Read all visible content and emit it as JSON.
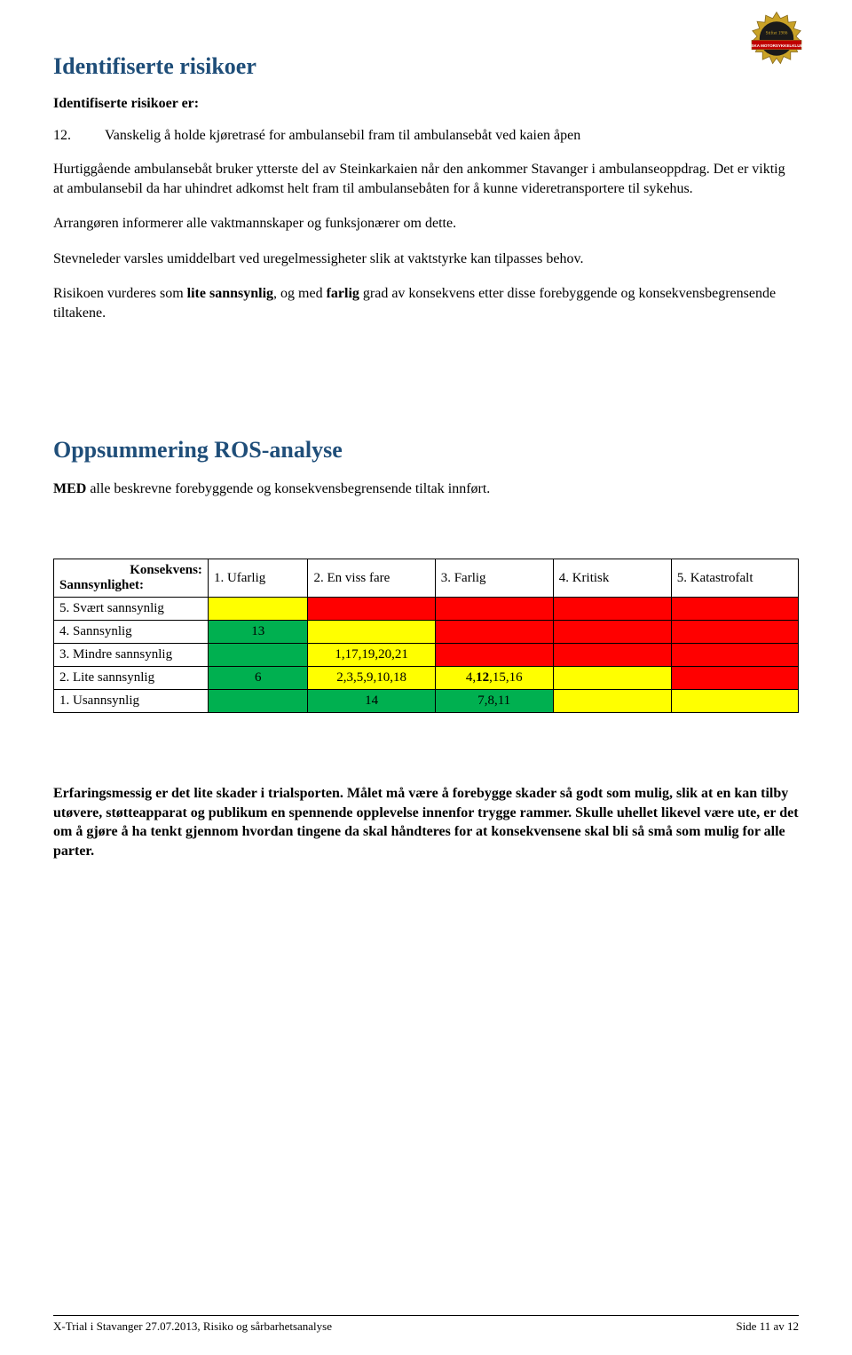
{
  "colors": {
    "heading": "#1f4e79",
    "green": "#00b050",
    "yellow": "#ffff00",
    "red": "#ff0000",
    "white": "#ffffff",
    "text": "#000000",
    "logo_banner": "#c00000",
    "logo_gold": "#c9a227",
    "logo_dark": "#1a1a1a"
  },
  "heading1": "Identifiserte risikoer",
  "subhead1": "Identifiserte risikoer er:",
  "item_num": "12.",
  "item_text": "Vanskelig å holde kjøretrasé for ambulansebil fram til ambulansebåt ved kaien åpen",
  "para1": "Hurtiggående ambulansebåt bruker ytterste del av Steinkarkaien når den ankommer Stavanger i ambulanseoppdrag. Det er viktig at ambulansebil da har uhindret adkomst helt fram til ambulansebåten for å kunne videretransportere til sykehus.",
  "para2": "Arrangøren informerer alle vaktmannskaper og funksjonærer om dette.",
  "para3": "Stevneleder varsles umiddelbart ved uregelmessigheter slik at vaktstyrke kan tilpasses behov.",
  "para4_pre": "Risikoen vurderes som ",
  "para4_b1": "lite sannsynlig",
  "para4_mid": ", og med ",
  "para4_b2": "farlig",
  "para4_post": " grad av konsekvens etter disse forebyggende og konsekvensbegrensende tiltakene.",
  "heading2": "Oppsummering ROS-analyse",
  "med_pre": "MED",
  "med_rest": " alle beskrevne forebyggende og konsekvensbegrensende tiltak innført.",
  "table": {
    "header_row": {
      "col0_line1": "Konsekvens:",
      "col0_line2": "Sannsynlighet:",
      "cols": [
        "1. Ufarlig",
        "2. En viss fare",
        "3. Farlig",
        "4. Kritisk",
        "5. Katastrofalt"
      ]
    },
    "rows": [
      {
        "label": "5. Svært sannsynlig",
        "cells": [
          {
            "text": "",
            "bg": "#ffff00"
          },
          {
            "text": "",
            "bg": "#ff0000"
          },
          {
            "text": "",
            "bg": "#ff0000"
          },
          {
            "text": "",
            "bg": "#ff0000"
          },
          {
            "text": "",
            "bg": "#ff0000"
          }
        ]
      },
      {
        "label": "4. Sannsynlig",
        "cells": [
          {
            "text": "13",
            "bg": "#00b050"
          },
          {
            "text": "",
            "bg": "#ffff00"
          },
          {
            "text": "",
            "bg": "#ff0000"
          },
          {
            "text": "",
            "bg": "#ff0000"
          },
          {
            "text": "",
            "bg": "#ff0000"
          }
        ]
      },
      {
        "label": "3. Mindre sannsynlig",
        "cells": [
          {
            "text": "",
            "bg": "#00b050"
          },
          {
            "text": "1,17,19,20,21",
            "bg": "#ffff00"
          },
          {
            "text": "",
            "bg": "#ff0000"
          },
          {
            "text": "",
            "bg": "#ff0000"
          },
          {
            "text": "",
            "bg": "#ff0000"
          }
        ]
      },
      {
        "label": "2. Lite sannsynlig",
        "cells": [
          {
            "text": "6",
            "bg": "#00b050"
          },
          {
            "text": "2,3,5,9,10,18",
            "bg": "#ffff00"
          },
          {
            "html": "4,<b>12</b>,15,16",
            "bg": "#ffff00"
          },
          {
            "text": "",
            "bg": "#ffff00"
          },
          {
            "text": "",
            "bg": "#ff0000"
          }
        ]
      },
      {
        "label": "1. Usannsynlig",
        "cells": [
          {
            "text": "",
            "bg": "#00b050"
          },
          {
            "text": "14",
            "bg": "#00b050"
          },
          {
            "text": "7,8,11",
            "bg": "#00b050"
          },
          {
            "text": "",
            "bg": "#ffff00"
          },
          {
            "text": "",
            "bg": "#ffff00"
          }
        ]
      }
    ],
    "col_widths": [
      "170px",
      "110px",
      "140px",
      "130px",
      "130px",
      "140px"
    ]
  },
  "closing": "Erfaringsmessig er det lite skader i trialsporten. Målet må være å forebygge skader så godt som mulig, slik at en kan tilby utøvere, støtteapparat og publikum en spennende opplevelse innenfor trygge rammer. Skulle uhellet likevel være ute, er det om å gjøre å ha tenkt gjennom hvordan tingene da skal håndteres for at konsekvensene skal bli så små som mulig for alle parter.",
  "footer_left": "X-Trial i Stavanger 27.07.2013,  Risiko og sårbarhetsanalyse",
  "footer_right": "Side 11 av 12",
  "logo": {
    "top_text": "Stiftet 1986",
    "banner_text": "RISKA MOTORSYKKELKLUBB"
  }
}
